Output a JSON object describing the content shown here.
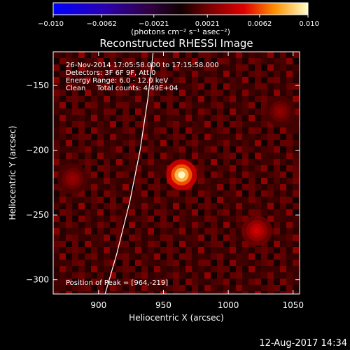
{
  "chart_data": {
    "type": "heatmap",
    "title": "Reconstructed RHESSI Image",
    "xlabel": "Heliocentric X (arcsec)",
    "ylabel": "Heliocentric Y (arcsec)",
    "xlim": [
      865,
      1055
    ],
    "ylim": [
      -311,
      -124
    ],
    "x_ticks": [
      900,
      950,
      1000,
      1050
    ],
    "x_tick_labels": [
      "900",
      "950",
      "1000",
      "1050"
    ],
    "y_ticks": [
      -150,
      -200,
      -250,
      -300
    ],
    "y_tick_labels": [
      "−150",
      "−200",
      "−250",
      "−300"
    ],
    "colorbar": {
      "min": -0.01,
      "max": 0.01,
      "ticks": [
        -0.01,
        -0.0062,
        -0.0021,
        0.0021,
        0.0062,
        0.01
      ],
      "tick_labels": [
        "−0.010",
        "−0.0062",
        "−0.0021",
        "0.0021",
        "0.0062",
        "0.010"
      ],
      "unit_label": "(photons cm⁻² s⁻¹ asec⁻²)"
    },
    "sources": [
      {
        "x": 964,
        "y": -219,
        "peak_value": 0.01
      },
      {
        "x": 1022,
        "y": -262,
        "peak_value": 0.0045
      },
      {
        "x": 880,
        "y": -222,
        "peak_value": 0.003
      },
      {
        "x": 1040,
        "y": -170,
        "peak_value": 0.0028
      }
    ],
    "limb_curve": {
      "points": [
        [
          942,
          -125
        ],
        [
          938,
          -160
        ],
        [
          932,
          -200
        ],
        [
          924,
          -240
        ],
        [
          914,
          -280
        ],
        [
          905,
          -311
        ]
      ]
    },
    "annotations": [
      "26-Nov-2014 17:05:58.000 to 17:15:58.000",
      "Detectors: 3F 6F 9F, Att 0",
      "Energy Range: 6.0 - 12.0 keV",
      "Clean     Total counts: 4.49E+04",
      "Position of Peak = [964,-219]"
    ]
  },
  "footer": {
    "timestamp": "12-Aug-2017 14:34"
  }
}
